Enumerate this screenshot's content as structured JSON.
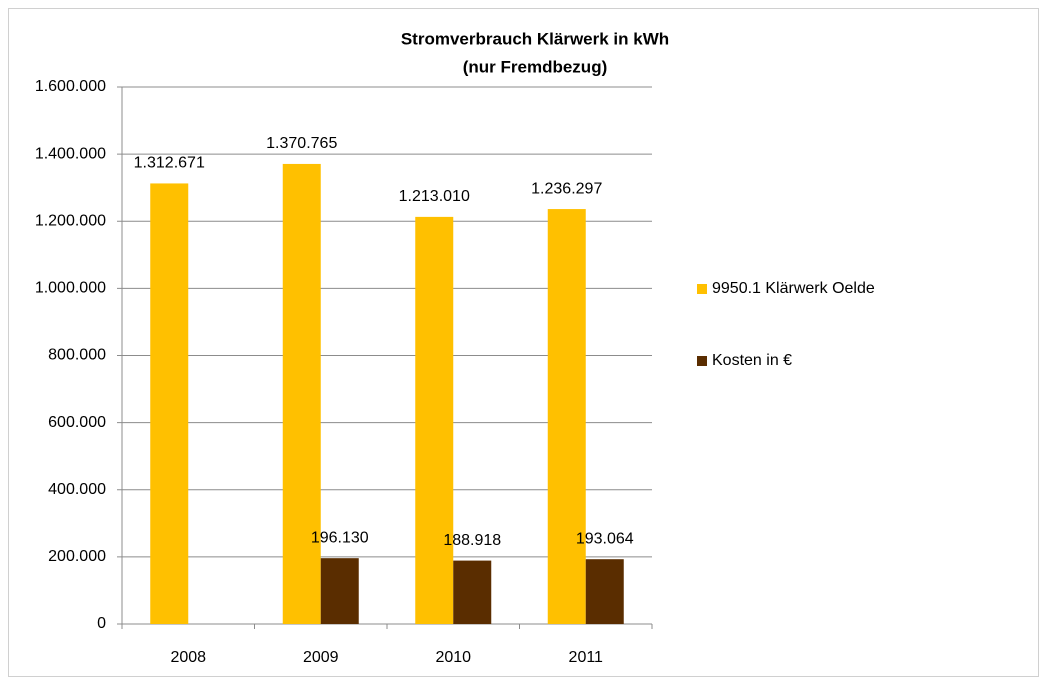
{
  "chart_data": {
    "type": "bar",
    "title": [
      "Stromverbrauch  Klärwerk in kWh",
      "(nur Fremdbezug)"
    ],
    "categories": [
      "2008",
      "2009",
      "2010",
      "2011"
    ],
    "series": [
      {
        "name": "9950.1 Klärwerk Oelde",
        "color": "#ffc000",
        "values": [
          1312671,
          1370765,
          1213010,
          1236297
        ],
        "value_labels": [
          "1.312.671",
          "1.370.765",
          "1.213.010",
          "1.236.297"
        ]
      },
      {
        "name": "Kosten in €",
        "color": "#5a2d00",
        "values": [
          null,
          196130,
          188918,
          193064
        ],
        "value_labels": [
          null,
          "196.130",
          "188.918",
          "193.064"
        ]
      }
    ],
    "ylim": [
      0,
      1600000
    ],
    "yticks": [
      0,
      {
        "value": 200000,
        "label": "200.000"
      },
      {
        "value": 400000,
        "label": "400.000"
      },
      {
        "value": 600000,
        "label": "600.000"
      },
      {
        "value": 800000,
        "label": "800.000"
      },
      {
        "value": 1000000,
        "label": "1.000.000"
      },
      {
        "value": 1200000,
        "label": "1.200.000"
      },
      {
        "value": 1400000,
        "label": "1.400.000"
      },
      {
        "value": 1600000,
        "label": "1.600.000"
      }
    ],
    "grid": true,
    "legend": "right"
  }
}
